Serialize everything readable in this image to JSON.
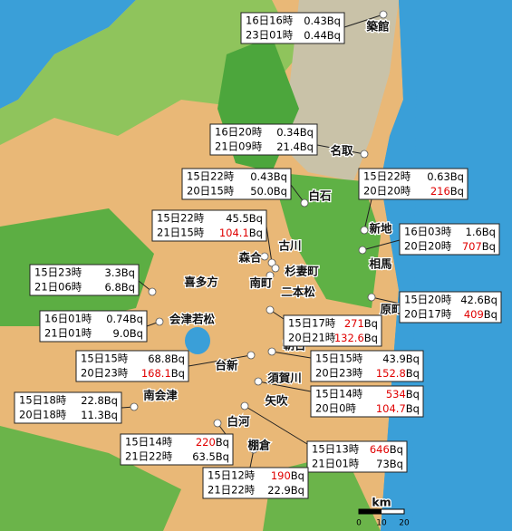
{
  "places": [
    {
      "name": "築館"
    },
    {
      "name": "名取"
    },
    {
      "name": "白石"
    },
    {
      "name": "新地"
    },
    {
      "name": "古川"
    },
    {
      "name": "森合"
    },
    {
      "name": "杉妻町"
    },
    {
      "name": "南町"
    },
    {
      "name": "相馬"
    },
    {
      "name": "原町"
    },
    {
      "name": "喜多方"
    },
    {
      "name": "二本松"
    },
    {
      "name": "会津若松"
    },
    {
      "name": "朝日"
    },
    {
      "name": "台新"
    },
    {
      "name": "須賀川"
    },
    {
      "name": "南会津"
    },
    {
      "name": "矢吹"
    },
    {
      "name": "白河"
    },
    {
      "name": "棚倉"
    }
  ],
  "readings": [
    {
      "rows": [
        {
          "time": "16日16時",
          "value": "0.43",
          "unit": "Bq",
          "highlight": false
        },
        {
          "time": "23日01時",
          "value": "0.44",
          "unit": "Bq",
          "highlight": false
        }
      ]
    },
    {
      "rows": [
        {
          "time": "16日20時",
          "value": "0.34",
          "unit": "Bq",
          "highlight": false
        },
        {
          "time": "21日09時",
          "value": "21.4",
          "unit": "Bq",
          "highlight": false
        }
      ]
    },
    {
      "rows": [
        {
          "time": "15日22時",
          "value": "0.43",
          "unit": "Bq",
          "highlight": false
        },
        {
          "time": "20日15時",
          "value": "50.0",
          "unit": "Bq",
          "highlight": false
        }
      ]
    },
    {
      "rows": [
        {
          "time": "15日22時",
          "value": "0.63",
          "unit": "Bq",
          "highlight": false
        },
        {
          "time": "20日20時",
          "value": "216",
          "unit": "Bq",
          "highlight": true
        }
      ]
    },
    {
      "rows": [
        {
          "time": "15日22時",
          "value": "45.5",
          "unit": "Bq",
          "highlight": false
        },
        {
          "time": "21日15時",
          "value": "104.1",
          "unit": "Bq",
          "highlight": true
        }
      ]
    },
    {
      "rows": [
        {
          "time": "16日03時",
          "value": "1.6",
          "unit": "Bq",
          "highlight": false
        },
        {
          "time": "20日20時",
          "value": "707",
          "unit": "Bq",
          "highlight": true
        }
      ]
    },
    {
      "rows": [
        {
          "time": "15日23時",
          "value": "3.3",
          "unit": "Bq",
          "highlight": false
        },
        {
          "time": "21日06時",
          "value": "6.8",
          "unit": "Bq",
          "highlight": false
        }
      ]
    },
    {
      "rows": [
        {
          "time": "15日20時",
          "value": "42.6",
          "unit": "Bq",
          "highlight": false
        },
        {
          "time": "20日17時",
          "value": "409",
          "unit": "Bq",
          "highlight": true
        }
      ]
    },
    {
      "rows": [
        {
          "time": "16日01時",
          "value": "0.74",
          "unit": "Bq",
          "highlight": false
        },
        {
          "time": "21日01時",
          "value": "9.0",
          "unit": "Bq",
          "highlight": false
        }
      ]
    },
    {
      "rows": [
        {
          "time": "15日17時",
          "value": "271",
          "unit": "Bq",
          "highlight": true
        },
        {
          "time": "20日21時",
          "value": "132.6",
          "unit": "Bq",
          "highlight": true
        }
      ]
    },
    {
      "rows": [
        {
          "time": "15日15時",
          "value": "68.8",
          "unit": "Bq",
          "highlight": false
        },
        {
          "time": "20日23時",
          "value": "168.1",
          "unit": "Bq",
          "highlight": true
        }
      ]
    },
    {
      "rows": [
        {
          "time": "15日15時",
          "value": "43.9",
          "unit": "Bq",
          "highlight": false
        },
        {
          "time": "20日23時",
          "value": "152.8",
          "unit": "Bq",
          "highlight": true
        }
      ]
    },
    {
      "rows": [
        {
          "time": "15日18時",
          "value": "22.8",
          "unit": "Bq",
          "highlight": false
        },
        {
          "time": "20日18時",
          "value": "11.3",
          "unit": "Bq",
          "highlight": false
        }
      ]
    },
    {
      "rows": [
        {
          "time": "15日14時",
          "value": "534",
          "unit": "Bq",
          "highlight": true
        },
        {
          "time": "20日0時",
          "value": "104.7",
          "unit": "Bq",
          "highlight": true
        }
      ]
    },
    {
      "rows": [
        {
          "time": "15日14時",
          "value": "220",
          "unit": "Bq",
          "highlight": true
        },
        {
          "time": "21日22時",
          "value": "63.5",
          "unit": "Bq",
          "highlight": false
        }
      ]
    },
    {
      "rows": [
        {
          "time": "15日13時",
          "value": "646",
          "unit": "Bq",
          "highlight": true
        },
        {
          "time": "21日01時",
          "value": "73",
          "unit": "Bq",
          "highlight": false
        }
      ]
    },
    {
      "rows": [
        {
          "time": "15日12時",
          "value": "190",
          "unit": "Bq",
          "highlight": true
        },
        {
          "time": "21日22時",
          "value": "22.9",
          "unit": "Bq",
          "highlight": false
        }
      ]
    }
  ],
  "scale": {
    "unit": "km",
    "ticks": [
      "0",
      "10",
      "20"
    ]
  }
}
